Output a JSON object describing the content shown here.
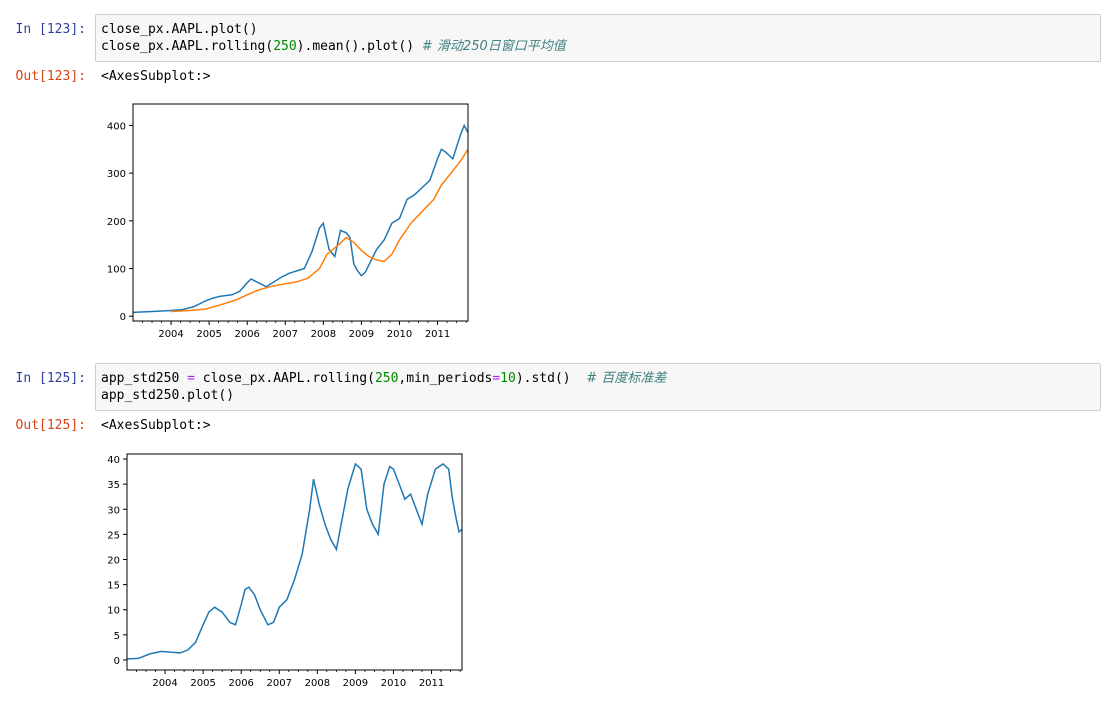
{
  "cells": [
    {
      "in_prompt": "In  [123]:",
      "code_lines": [
        [
          {
            "t": "plain",
            "v": "close_px.AAPL.plot()"
          }
        ],
        [
          {
            "t": "plain",
            "v": "close_px.AAPL.rolling("
          },
          {
            "t": "num",
            "v": "250"
          },
          {
            "t": "plain",
            "v": ").mean().plot() "
          },
          {
            "t": "com",
            "v": "# 滑动250日窗口平均值"
          }
        ]
      ],
      "out_prompt": "Out[123]:",
      "out_text": "<AxesSubplot:>"
    },
    {
      "in_prompt": "In  [125]:",
      "code_lines": [
        [
          {
            "t": "plain",
            "v": "app_std250 "
          },
          {
            "t": "op",
            "v": "="
          },
          {
            "t": "plain",
            "v": " close_px.AAPL.rolling("
          },
          {
            "t": "num",
            "v": "250"
          },
          {
            "t": "plain",
            "v": ",min_periods"
          },
          {
            "t": "op",
            "v": "="
          },
          {
            "t": "num",
            "v": "10"
          },
          {
            "t": "plain",
            "v": ").std()  "
          },
          {
            "t": "com",
            "v": "# 百度标准差"
          }
        ],
        [
          {
            "t": "plain",
            "v": "app_std250.plot()"
          }
        ]
      ],
      "out_prompt": "Out[125]:",
      "out_text": "<AxesSubplot:>"
    }
  ],
  "chart_data": [
    {
      "type": "line",
      "xlim": [
        2003.0,
        2011.8
      ],
      "ylim": [
        -10,
        445
      ],
      "yticks": [
        0,
        100,
        200,
        300,
        400
      ],
      "xticks": [
        2004,
        2005,
        2006,
        2007,
        2008,
        2009,
        2010,
        2011
      ],
      "xtick_labels": [
        "2004",
        "2005",
        "2006",
        "2007",
        "2008",
        "2009",
        "2010",
        "2011"
      ],
      "ytick_labels": [
        "0",
        "100",
        "200",
        "300",
        "400"
      ],
      "series": [
        {
          "color": "#1f77b4",
          "x": [
            2003.0,
            2003.5,
            2004.0,
            2004.3,
            2004.6,
            2004.9,
            2005.1,
            2005.3,
            2005.6,
            2005.8,
            2006.0,
            2006.1,
            2006.3,
            2006.5,
            2006.7,
            2006.9,
            2007.1,
            2007.3,
            2007.5,
            2007.7,
            2007.9,
            2008.0,
            2008.15,
            2008.3,
            2008.45,
            2008.6,
            2008.7,
            2008.8,
            2008.9,
            2009.0,
            2009.1,
            2009.2,
            2009.4,
            2009.6,
            2009.8,
            2010.0,
            2010.2,
            2010.4,
            2010.6,
            2010.8,
            2011.0,
            2011.1,
            2011.2,
            2011.4,
            2011.5,
            2011.6,
            2011.7,
            2011.8
          ],
          "y": [
            8,
            10,
            12,
            14,
            20,
            32,
            38,
            42,
            45,
            52,
            70,
            78,
            70,
            62,
            72,
            82,
            90,
            95,
            100,
            135,
            185,
            195,
            140,
            125,
            180,
            175,
            165,
            110,
            95,
            85,
            92,
            108,
            140,
            160,
            195,
            205,
            245,
            255,
            270,
            285,
            330,
            350,
            345,
            330,
            355,
            380,
            400,
            385
          ]
        },
        {
          "color": "#ff7f0e",
          "x": [
            2004.0,
            2004.5,
            2004.9,
            2005.3,
            2005.7,
            2006.0,
            2006.3,
            2006.6,
            2007.0,
            2007.3,
            2007.6,
            2007.9,
            2008.1,
            2008.4,
            2008.6,
            2008.8,
            2009.0,
            2009.2,
            2009.4,
            2009.6,
            2009.8,
            2010.0,
            2010.3,
            2010.6,
            2010.9,
            2011.1,
            2011.4,
            2011.6,
            2011.8
          ],
          "y": [
            10,
            12,
            15,
            24,
            34,
            45,
            55,
            62,
            68,
            72,
            80,
            100,
            130,
            150,
            165,
            155,
            138,
            125,
            118,
            115,
            130,
            160,
            195,
            220,
            245,
            275,
            305,
            325,
            350
          ]
        }
      ]
    },
    {
      "type": "line",
      "xlim": [
        2003.0,
        2011.8
      ],
      "ylim": [
        -2,
        41
      ],
      "yticks": [
        0,
        5,
        10,
        15,
        20,
        25,
        30,
        35,
        40
      ],
      "xticks": [
        2004,
        2005,
        2006,
        2007,
        2008,
        2009,
        2010,
        2011
      ],
      "xtick_labels": [
        "2004",
        "2005",
        "2006",
        "2007",
        "2008",
        "2009",
        "2010",
        "2011"
      ],
      "ytick_labels": [
        "0",
        "5",
        "10",
        "15",
        "20",
        "25",
        "30",
        "35",
        "40"
      ],
      "series": [
        {
          "color": "#1f77b4",
          "x": [
            2003.0,
            2003.3,
            2003.6,
            2003.9,
            2004.2,
            2004.4,
            2004.6,
            2004.8,
            2005.0,
            2005.15,
            2005.3,
            2005.5,
            2005.7,
            2005.85,
            2006.0,
            2006.1,
            2006.2,
            2006.35,
            2006.5,
            2006.7,
            2006.85,
            2007.0,
            2007.2,
            2007.4,
            2007.6,
            2007.8,
            2007.9,
            2008.05,
            2008.2,
            2008.35,
            2008.5,
            2008.65,
            2008.8,
            2009.0,
            2009.15,
            2009.3,
            2009.45,
            2009.6,
            2009.75,
            2009.9,
            2010.0,
            2010.15,
            2010.3,
            2010.45,
            2010.6,
            2010.75,
            2010.9,
            2011.1,
            2011.3,
            2011.45,
            2011.55,
            2011.65,
            2011.72,
            2011.8
          ],
          "y": [
            0.2,
            0.3,
            1.2,
            1.7,
            1.5,
            1.4,
            2,
            3.5,
            7,
            9.5,
            10.5,
            9.5,
            7.5,
            7,
            11,
            14,
            14.5,
            13,
            10,
            7,
            7.5,
            10.5,
            12,
            16,
            21,
            30,
            36,
            31,
            27,
            24,
            22,
            28,
            34,
            39,
            38,
            30,
            27,
            25,
            35,
            38.5,
            38,
            35,
            32,
            33,
            30,
            27,
            33,
            38,
            39,
            38,
            32,
            28,
            25.5,
            26
          ]
        }
      ]
    }
  ]
}
